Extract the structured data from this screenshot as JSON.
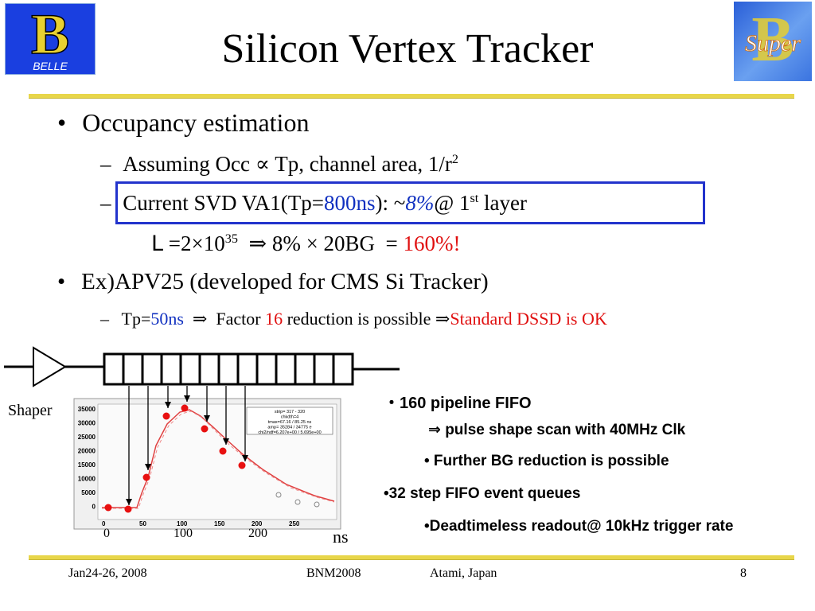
{
  "title": "Silicon Vertex Tracker",
  "logos": {
    "left_text": "BELLE",
    "right_text": "Super"
  },
  "bullets": {
    "b1": "Occupancy estimation",
    "b1_sub1": {
      "prefix": "Assuming Occ ",
      "propto": "∝",
      "rest": " Tp, channel area, 1/r",
      "sup": "2"
    },
    "b1_sub2": {
      "prefix": "Current SVD VA1(Tp=",
      "tp": "800ns",
      "mid": "): ~",
      "occ": "8%",
      "at": "@ 1",
      "sup": "st",
      "end": " layer"
    },
    "calc": {
      "L": "L",
      "eq": " =2×10",
      "exp": "35",
      "arrow": "  ⇒ 8% × 20BG  = ",
      "result": "160%!"
    },
    "b2": "Ex)APV25 (developed for CMS Si Tracker)",
    "b2_sub1": {
      "prefix": "Tp=",
      "tp": "50ns",
      "mid": "  ⇒  Factor ",
      "factor": "16",
      "rest": " reduction is possible ⇒",
      "ok": "Standard DSSD is OK"
    }
  },
  "diagram": {
    "shaper_label": "Shaper",
    "pipeline_cells": 13,
    "plot_stats": [
      "strip= 317 - 320",
      "chkdth=4",
      "tmax=67.16 / 85.25 ns",
      "amp= 35284 / 34775 e",
      "chi2/ndf=6.207e+00 / 5.695e+00"
    ],
    "y_ticks": [
      "35000",
      "30000",
      "25000",
      "20000",
      "15000",
      "10000",
      "5000",
      "0"
    ],
    "x_ticks_inner": [
      "0",
      "50",
      "100",
      "150",
      "200",
      "250"
    ],
    "x_axis_labels": [
      "0",
      "100",
      "200"
    ],
    "x_unit": "ns"
  },
  "notes": {
    "n1": "・160 pipeline FIFO",
    "n2": "⇒ pulse shape scan with 40MHz Clk",
    "n3": "•  Further BG reduction is possible",
    "n4": "•32 step FIFO event queues",
    "n5": "•Deadtimeless readout@ 10kHz trigger rate"
  },
  "footer": {
    "date": "Jan24-26, 2008",
    "conf": "BNM2008",
    "place": "Atami, Japan",
    "page": "8"
  },
  "colors": {
    "accent_blue": "#1030c0",
    "red": "#e01010",
    "rule": "#e8d64a",
    "box": "#2233cc"
  }
}
